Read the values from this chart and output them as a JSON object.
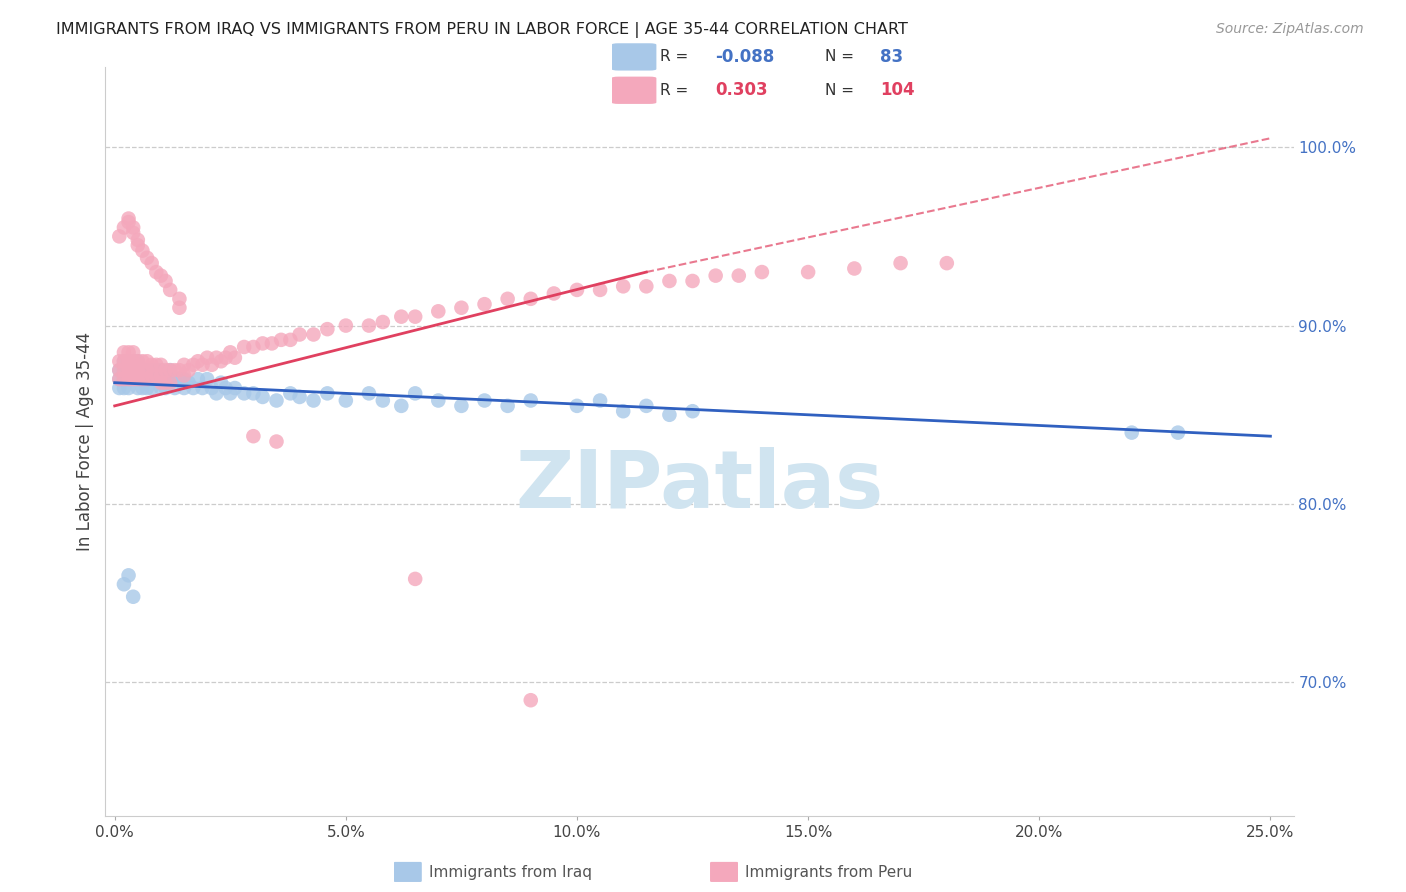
{
  "title": "IMMIGRANTS FROM IRAQ VS IMMIGRANTS FROM PERU IN LABOR FORCE | AGE 35-44 CORRELATION CHART",
  "source": "Source: ZipAtlas.com",
  "ylabel": "In Labor Force | Age 35-44",
  "right_yticks": [
    0.7,
    0.8,
    0.9,
    1.0
  ],
  "right_yticklabels": [
    "70.0%",
    "80.0%",
    "90.0%",
    "100.0%"
  ],
  "xticks": [
    0.0,
    0.05,
    0.1,
    0.15,
    0.2,
    0.25
  ],
  "xticklabels": [
    "0.0%",
    "5.0%",
    "10.0%",
    "15.0%",
    "20.0%",
    "25.0%"
  ],
  "xlim": [
    -0.002,
    0.255
  ],
  "ylim": [
    0.625,
    1.045
  ],
  "iraq_color": "#a8c8e8",
  "peru_color": "#f4a8bc",
  "iraq_line_color": "#3060c0",
  "peru_line_color": "#e04060",
  "iraq_R": -0.088,
  "iraq_N": 83,
  "peru_R": 0.303,
  "peru_N": 104,
  "watermark": "ZIPatlas",
  "watermark_color": "#d0e4f0",
  "iraq_scatter_x": [
    0.001,
    0.001,
    0.001,
    0.002,
    0.002,
    0.002,
    0.002,
    0.003,
    0.003,
    0.003,
    0.003,
    0.003,
    0.004,
    0.004,
    0.004,
    0.004,
    0.005,
    0.005,
    0.005,
    0.005,
    0.006,
    0.006,
    0.006,
    0.007,
    0.007,
    0.007,
    0.008,
    0.008,
    0.008,
    0.009,
    0.009,
    0.01,
    0.01,
    0.01,
    0.011,
    0.011,
    0.012,
    0.012,
    0.013,
    0.013,
    0.014,
    0.015,
    0.015,
    0.016,
    0.017,
    0.018,
    0.019,
    0.02,
    0.021,
    0.022,
    0.023,
    0.024,
    0.025,
    0.026,
    0.028,
    0.03,
    0.032,
    0.035,
    0.038,
    0.04,
    0.043,
    0.046,
    0.05,
    0.055,
    0.058,
    0.062,
    0.065,
    0.07,
    0.075,
    0.08,
    0.085,
    0.09,
    0.1,
    0.105,
    0.11,
    0.115,
    0.12,
    0.125,
    0.22,
    0.23,
    0.002,
    0.003,
    0.004
  ],
  "iraq_scatter_y": [
    0.87,
    0.875,
    0.865,
    0.88,
    0.87,
    0.875,
    0.865,
    0.88,
    0.875,
    0.865,
    0.87,
    0.875,
    0.88,
    0.875,
    0.87,
    0.875,
    0.88,
    0.875,
    0.87,
    0.865,
    0.875,
    0.87,
    0.865,
    0.875,
    0.87,
    0.865,
    0.875,
    0.87,
    0.865,
    0.87,
    0.875,
    0.875,
    0.87,
    0.865,
    0.87,
    0.865,
    0.87,
    0.875,
    0.87,
    0.865,
    0.87,
    0.87,
    0.865,
    0.868,
    0.865,
    0.87,
    0.865,
    0.87,
    0.865,
    0.862,
    0.868,
    0.865,
    0.862,
    0.865,
    0.862,
    0.862,
    0.86,
    0.858,
    0.862,
    0.86,
    0.858,
    0.862,
    0.858,
    0.862,
    0.858,
    0.855,
    0.862,
    0.858,
    0.855,
    0.858,
    0.855,
    0.858,
    0.855,
    0.858,
    0.852,
    0.855,
    0.85,
    0.852,
    0.84,
    0.84,
    0.755,
    0.76,
    0.748
  ],
  "peru_scatter_x": [
    0.001,
    0.001,
    0.001,
    0.002,
    0.002,
    0.002,
    0.002,
    0.003,
    0.003,
    0.003,
    0.003,
    0.004,
    0.004,
    0.004,
    0.004,
    0.005,
    0.005,
    0.005,
    0.006,
    0.006,
    0.006,
    0.007,
    0.007,
    0.007,
    0.008,
    0.008,
    0.009,
    0.009,
    0.01,
    0.01,
    0.01,
    0.011,
    0.011,
    0.012,
    0.012,
    0.013,
    0.014,
    0.015,
    0.015,
    0.016,
    0.017,
    0.018,
    0.019,
    0.02,
    0.021,
    0.022,
    0.023,
    0.024,
    0.025,
    0.026,
    0.028,
    0.03,
    0.032,
    0.034,
    0.036,
    0.038,
    0.04,
    0.043,
    0.046,
    0.05,
    0.055,
    0.058,
    0.062,
    0.065,
    0.07,
    0.075,
    0.08,
    0.085,
    0.09,
    0.095,
    0.1,
    0.105,
    0.11,
    0.115,
    0.12,
    0.125,
    0.13,
    0.135,
    0.14,
    0.15,
    0.16,
    0.17,
    0.18,
    0.001,
    0.002,
    0.003,
    0.003,
    0.004,
    0.004,
    0.005,
    0.005,
    0.006,
    0.007,
    0.008,
    0.009,
    0.01,
    0.011,
    0.012,
    0.014,
    0.014,
    0.03,
    0.035,
    0.065,
    0.09
  ],
  "peru_scatter_y": [
    0.88,
    0.875,
    0.87,
    0.885,
    0.88,
    0.875,
    0.87,
    0.885,
    0.88,
    0.875,
    0.87,
    0.885,
    0.88,
    0.875,
    0.87,
    0.88,
    0.875,
    0.87,
    0.88,
    0.875,
    0.87,
    0.88,
    0.875,
    0.87,
    0.878,
    0.872,
    0.878,
    0.872,
    0.878,
    0.872,
    0.868,
    0.875,
    0.868,
    0.875,
    0.868,
    0.875,
    0.875,
    0.878,
    0.872,
    0.875,
    0.878,
    0.88,
    0.878,
    0.882,
    0.878,
    0.882,
    0.88,
    0.882,
    0.885,
    0.882,
    0.888,
    0.888,
    0.89,
    0.89,
    0.892,
    0.892,
    0.895,
    0.895,
    0.898,
    0.9,
    0.9,
    0.902,
    0.905,
    0.905,
    0.908,
    0.91,
    0.912,
    0.915,
    0.915,
    0.918,
    0.92,
    0.92,
    0.922,
    0.922,
    0.925,
    0.925,
    0.928,
    0.928,
    0.93,
    0.93,
    0.932,
    0.935,
    0.935,
    0.95,
    0.955,
    0.96,
    0.958,
    0.955,
    0.952,
    0.948,
    0.945,
    0.942,
    0.938,
    0.935,
    0.93,
    0.928,
    0.925,
    0.92,
    0.915,
    0.91,
    0.838,
    0.835,
    0.758,
    0.69
  ],
  "iraq_trend_x0": 0.0,
  "iraq_trend_x1": 0.25,
  "iraq_trend_y0": 0.868,
  "iraq_trend_y1": 0.838,
  "peru_trend_solid_x0": 0.0,
  "peru_trend_solid_x1": 0.115,
  "peru_trend_y0": 0.855,
  "peru_trend_y1": 0.93,
  "peru_trend_dashed_x0": 0.115,
  "peru_trend_dashed_x1": 0.25,
  "peru_trend_dashed_y0": 0.93,
  "peru_trend_dashed_y1": 1.005
}
